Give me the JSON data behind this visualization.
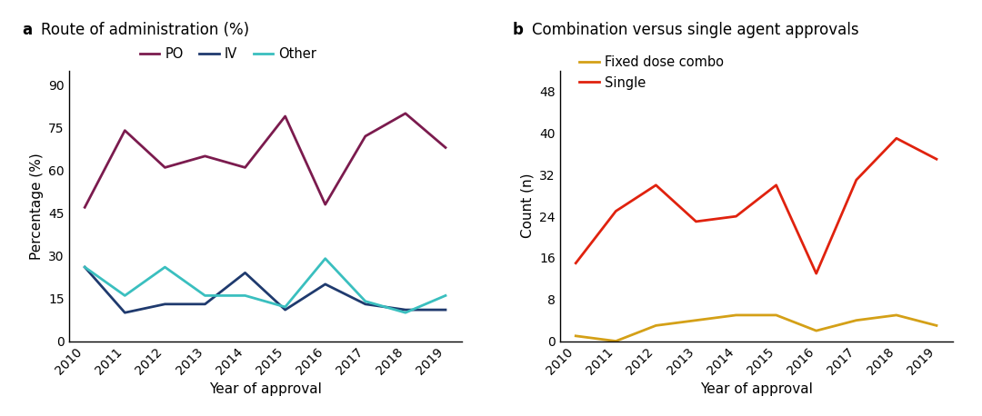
{
  "years": [
    2010,
    2011,
    2012,
    2013,
    2014,
    2015,
    2016,
    2017,
    2018,
    2019
  ],
  "panel_a": {
    "title_prefix": "a",
    "title": "Route of administration (%)",
    "ylabel": "Percentage (%)",
    "xlabel": "Year of approval",
    "ylim": [
      0,
      95
    ],
    "yticks": [
      0,
      15,
      30,
      45,
      60,
      75,
      90
    ],
    "PO": [
      47,
      74,
      61,
      65,
      61,
      79,
      48,
      72,
      80,
      68
    ],
    "IV": [
      26,
      10,
      13,
      13,
      24,
      11,
      20,
      13,
      11,
      11
    ],
    "Other": [
      26,
      16,
      26,
      16,
      16,
      12,
      29,
      14,
      10,
      16
    ],
    "PO_color": "#7B1B4E",
    "IV_color": "#1F3A6E",
    "Other_color": "#3ABFBF",
    "line_width": 2.0
  },
  "panel_b": {
    "title_prefix": "b",
    "title": "Combination versus single agent approvals",
    "ylabel": "Count (n)",
    "xlabel": "Year of approval",
    "ylim": [
      0,
      52
    ],
    "yticks": [
      0,
      8,
      16,
      24,
      32,
      40,
      48
    ],
    "Fixed_dose_combo": [
      1,
      0,
      3,
      4,
      5,
      5,
      2,
      4,
      5,
      3
    ],
    "Single": [
      15,
      25,
      30,
      23,
      24,
      30,
      13,
      31,
      39,
      35
    ],
    "Fixed_color": "#D4A017",
    "Single_color": "#E0220E",
    "line_width": 2.0
  },
  "background_color": "#FFFFFF",
  "title_fontsize": 12,
  "label_fontsize": 11,
  "tick_fontsize": 10,
  "legend_fontsize": 10.5
}
